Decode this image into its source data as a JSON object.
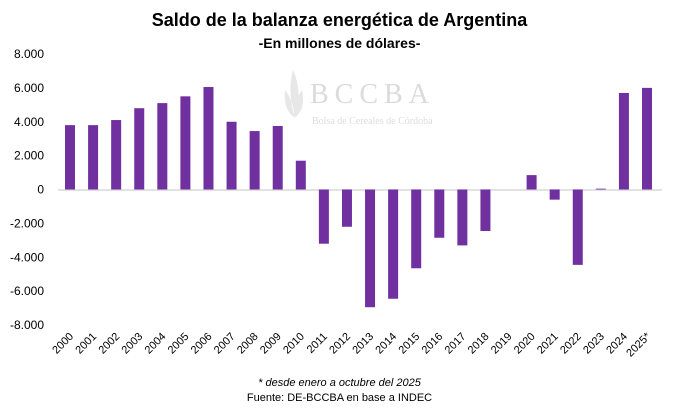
{
  "chart_data": {
    "type": "bar",
    "title": "Saldo de la balanza energética de Argentina",
    "subtitle": "-En millones de dólares-",
    "categories": [
      "2000",
      "2001",
      "2002",
      "2003",
      "2004",
      "2005",
      "2006",
      "2007",
      "2008",
      "2009",
      "2010",
      "2011",
      "2012",
      "2013",
      "2014",
      "2015",
      "2016",
      "2017",
      "2018",
      "2019",
      "2020",
      "2021",
      "2022",
      "2023",
      "2024",
      "2025*"
    ],
    "values": [
      3800,
      3800,
      4100,
      4800,
      5100,
      5500,
      6050,
      4000,
      3450,
      3750,
      1700,
      -3200,
      -2200,
      -6950,
      -6450,
      -4650,
      -2850,
      -3300,
      -2450,
      0,
      850,
      -600,
      -4450,
      50,
      5700,
      6000
    ],
    "ylim": [
      -8000,
      8000
    ],
    "yticks": [
      8000,
      6000,
      4000,
      2000,
      0,
      -2000,
      -4000,
      -6000,
      -8000
    ],
    "ytick_labels": [
      "8.000",
      "6.000",
      "4.000",
      "2.000",
      "0",
      "-2.000",
      "-4.000",
      "-6.000",
      "-8.000"
    ],
    "grid": false,
    "bar_color": "#7030A0",
    "note": "* desde enero a  octubre del 2025",
    "source": "Fuente: DE-BCCBA en base a INDEC"
  },
  "watermark": {
    "title": "BCCBA",
    "subtitle": "Bolsa de Cereales de Córdoba"
  }
}
